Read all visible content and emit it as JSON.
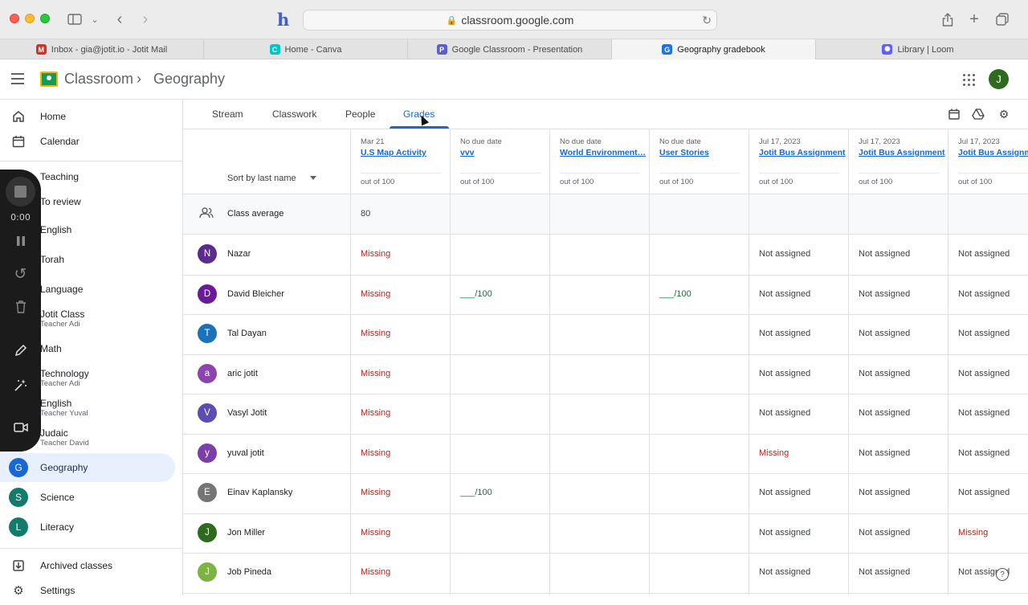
{
  "browser": {
    "url": "classroom.google.com",
    "tabs": [
      {
        "label": "Inbox - gia@jotit.io - Jotit Mail",
        "icon": "gmail-icon",
        "color": "#d93025",
        "glyph": "M"
      },
      {
        "label": "Home - Canva",
        "icon": "canva-icon",
        "color": "#00c4cc",
        "glyph": "C"
      },
      {
        "label": "Google Classroom - Presentation",
        "icon": "presentation-icon",
        "color": "#5b5fc7",
        "glyph": "P"
      },
      {
        "label": "Geography gradebook",
        "icon": "classroom-icon",
        "color": "#1a73e8",
        "glyph": "G"
      },
      {
        "label": "Library | Loom",
        "icon": "loom-icon",
        "color": "#625df5",
        "glyph": "✺"
      }
    ]
  },
  "header": {
    "brand": "Classroom",
    "separator": "›",
    "class_name": "Geography",
    "account_initial": "J"
  },
  "sidebar": {
    "home": "Home",
    "calendar": "Calendar",
    "teaching": "Teaching",
    "to_review": "To review",
    "classes": [
      {
        "label": "English",
        "sub": ""
      },
      {
        "label": "Torah",
        "sub": ""
      },
      {
        "label": "Language",
        "sub": ""
      },
      {
        "label": "Jotit Class",
        "sub": "Teacher Adi"
      },
      {
        "label": "Math",
        "sub": ""
      },
      {
        "label": "Technology",
        "sub": "Teacher Adi"
      },
      {
        "label": "English",
        "sub": "Teacher Yuval"
      },
      {
        "label": "Judaic",
        "sub": "Teacher David"
      }
    ],
    "colored_classes": [
      {
        "label": "Geography",
        "initial": "G",
        "color": "#1967d2"
      },
      {
        "label": "Science",
        "initial": "S",
        "color": "#137b6b"
      },
      {
        "label": "Literacy",
        "initial": "L",
        "color": "#137b6b"
      }
    ],
    "archived": "Archived classes",
    "settings": "Settings"
  },
  "recorder": {
    "time": "0:00"
  },
  "subtabs": [
    "Stream",
    "Classwork",
    "People",
    "Grades"
  ],
  "gradebook": {
    "sort_label": "Sort by last name",
    "assignments": [
      {
        "date": "Mar 21",
        "title": "U.S Map Activity",
        "out_of": "out of 100"
      },
      {
        "date": "No due date",
        "title": "vvv",
        "out_of": "out of 100"
      },
      {
        "date": "No due date",
        "title": "World Environment…",
        "out_of": "out of 100"
      },
      {
        "date": "No due date",
        "title": "User Stories",
        "out_of": "out of 100"
      },
      {
        "date": "Jul 17, 2023",
        "title": "Jotit Bus Assignment",
        "out_of": "out of 100"
      },
      {
        "date": "Jul 17, 2023",
        "title": "Jotit Bus Assignment",
        "out_of": "out of 100"
      },
      {
        "date": "Jul 17, 2023",
        "title": "Jotit Bus Assignment",
        "out_of": "out of 100"
      }
    ],
    "class_average_label": "Class average",
    "class_average_values": [
      "80",
      "",
      "",
      "",
      "",
      "",
      ""
    ],
    "students": [
      {
        "name": "Nazar",
        "initial": "N",
        "color": "#5b2c8e",
        "grades": [
          "Missing",
          "",
          "",
          "",
          "Not assigned",
          "Not assigned",
          "Not assigned"
        ]
      },
      {
        "name": "David Bleicher",
        "initial": "D",
        "color": "#6a1b9a",
        "grades": [
          "Missing",
          "___/100",
          "",
          "___/100",
          "Not assigned",
          "Not assigned",
          "Not assigned"
        ]
      },
      {
        "name": "Tal Dayan",
        "initial": "T",
        "color": "#1a73b8",
        "grades": [
          "Missing",
          "",
          "",
          "",
          "Not assigned",
          "Not assigned",
          "Not assigned"
        ]
      },
      {
        "name": "aric jotit",
        "initial": "a",
        "color": "#8e44ad",
        "grades": [
          "Missing",
          "",
          "",
          "",
          "Not assigned",
          "Not assigned",
          "Not assigned"
        ]
      },
      {
        "name": "Vasyl Jotit",
        "initial": "V",
        "color": "#5c4db1",
        "grades": [
          "Missing",
          "",
          "",
          "",
          "Not assigned",
          "Not assigned",
          "Not assigned"
        ]
      },
      {
        "name": "yuval jotit",
        "initial": "y",
        "color": "#7b3fa8",
        "grades": [
          "Missing",
          "",
          "",
          "",
          "Missing",
          "Not assigned",
          "Not assigned"
        ]
      },
      {
        "name": "Einav Kaplansky",
        "initial": "E",
        "color": "#757575",
        "grades": [
          "Missing",
          "___/100",
          "",
          "",
          "Not assigned",
          "Not assigned",
          "Not assigned"
        ]
      },
      {
        "name": "Jon Miller",
        "initial": "J",
        "color": "#2e6b1f",
        "grades": [
          "Missing",
          "",
          "",
          "",
          "Not assigned",
          "Not assigned",
          "Missing"
        ]
      },
      {
        "name": "Job Pineda",
        "initial": "J",
        "color": "#7cb342",
        "grades": [
          "Missing",
          "",
          "",
          "",
          "Not assigned",
          "Not assigned",
          "Not assigned"
        ]
      }
    ]
  }
}
